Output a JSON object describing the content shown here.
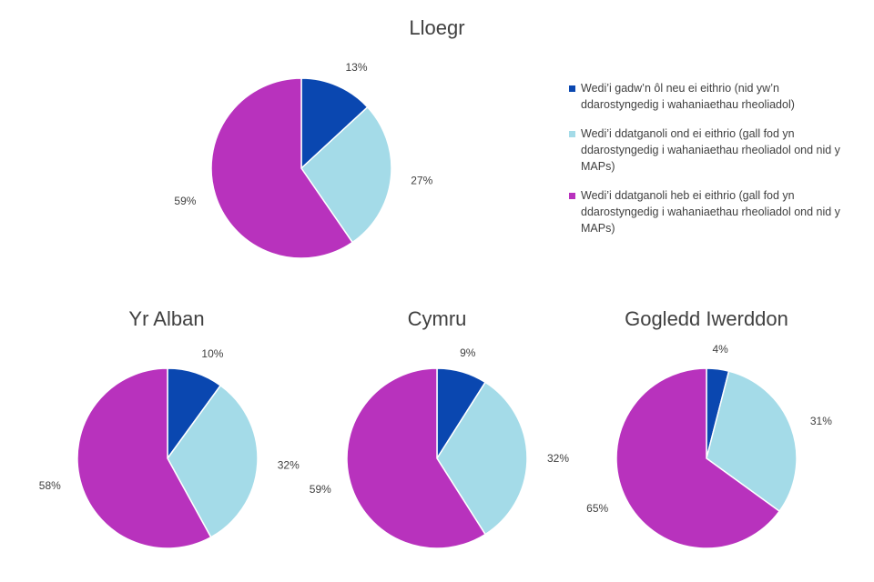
{
  "colors": [
    "#0a47b0",
    "#a4dbe8",
    "#b832bd"
  ],
  "legend": [
    "Wedi’i gadw’n ôl neu ei eithrio (nid yw’n ddarostyngedig i wahaniaethau rheoliadol)",
    "Wedi’i ddatganoli ond ei eithrio (gall fod yn ddarostyngedig i wahaniaethau rheoliadol ond nid y MAPs)",
    "Wedi’i ddatganoli heb ei eithrio (gall fod yn ddarostyngedig i wahaniaethau rheoliadol ond nid y MAPs)"
  ],
  "chart_data": [
    {
      "type": "pie",
      "title": "Lloegr",
      "categories": [
        "Wedi’i gadw’n ôl neu ei eithrio (nid yw’n ddarostyngedig i wahaniaethau rheoliadol)",
        "Wedi’i ddatganoli ond ei eithrio (gall fod yn ddarostyngedig i wahaniaethau rheoliadol ond nid y MAPs)",
        "Wedi’i ddatganoli heb ei eithrio (gall fod yn ddarostyngedig i wahaniaethau rheoliadol ond nid y MAPs)"
      ],
      "values": [
        13,
        27,
        59
      ],
      "labels": [
        "13%",
        "27%",
        "59%"
      ]
    },
    {
      "type": "pie",
      "title": "Yr Alban",
      "values": [
        10,
        32,
        58
      ],
      "labels": [
        "10%",
        "32%",
        "58%"
      ]
    },
    {
      "type": "pie",
      "title": "Cymru",
      "values": [
        9,
        32,
        59
      ],
      "labels": [
        "9%",
        "32%",
        "59%"
      ]
    },
    {
      "type": "pie",
      "title": "Gogledd Iwerddon",
      "values": [
        4,
        31,
        65
      ],
      "labels": [
        "4%",
        "31%",
        "65%"
      ]
    }
  ]
}
